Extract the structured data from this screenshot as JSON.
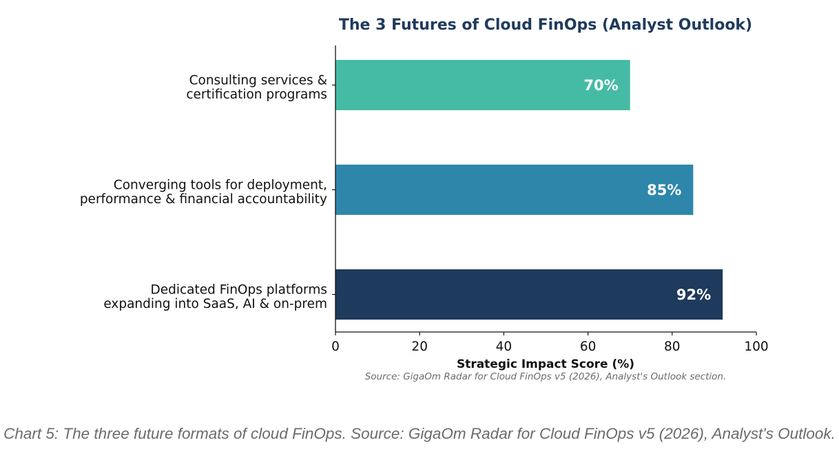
{
  "chart_data": {
    "type": "bar",
    "orientation": "horizontal",
    "title": "The 3 Futures of Cloud FinOps (Analyst Outlook)",
    "xlabel": "Strategic Impact Score (%)",
    "ylabel": "",
    "xlim": [
      0,
      100
    ],
    "xticks": [
      0,
      20,
      40,
      60,
      80,
      100
    ],
    "grid": false,
    "legend": "none",
    "categories": [
      [
        "Consulting services &",
        "certification programs"
      ],
      [
        "Converging tools for deployment,",
        "performance & financial accountability"
      ],
      [
        "Dedicated FinOps platforms",
        "expanding into SaaS, AI & on-prem"
      ]
    ],
    "values": [
      70,
      85,
      92
    ],
    "data_labels": [
      "70%",
      "85%",
      "92%"
    ],
    "colors": [
      "#45bba5",
      "#2e87ab",
      "#1e3a5c"
    ],
    "source_note": "Source: GigaOm Radar for Cloud FinOps v5 (2026), Analyst's Outlook section."
  },
  "caption": "Chart 5: The three future formats of cloud FinOps. Source: GigaOm Radar for Cloud FinOps v5 (2026), Analyst's Outlook."
}
